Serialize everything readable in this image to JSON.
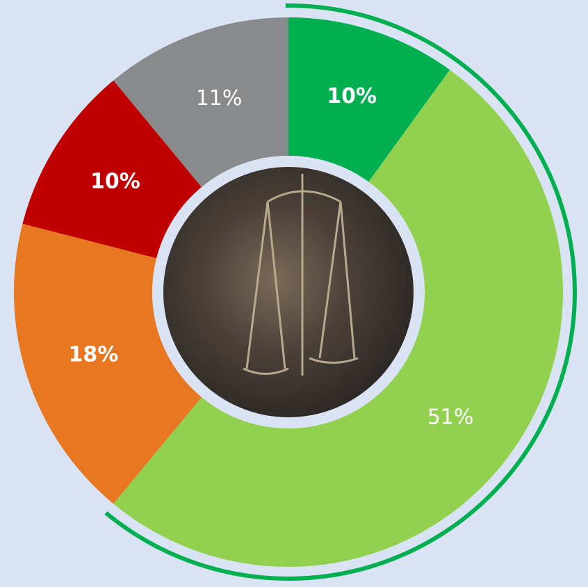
{
  "chart_data": {
    "type": "donut",
    "values": [
      10,
      51,
      18,
      10,
      11
    ],
    "value_labels": [
      "10%",
      "51%",
      "18%",
      "10%",
      "11%"
    ],
    "colors": [
      "#00b050",
      "#92d050",
      "#e87722",
      "#c00000",
      "#898a8c"
    ],
    "label_bold": [
      true,
      false,
      true,
      true,
      false
    ],
    "highlight_arc": {
      "color": "#00b050",
      "segments": [
        0,
        1
      ]
    }
  }
}
